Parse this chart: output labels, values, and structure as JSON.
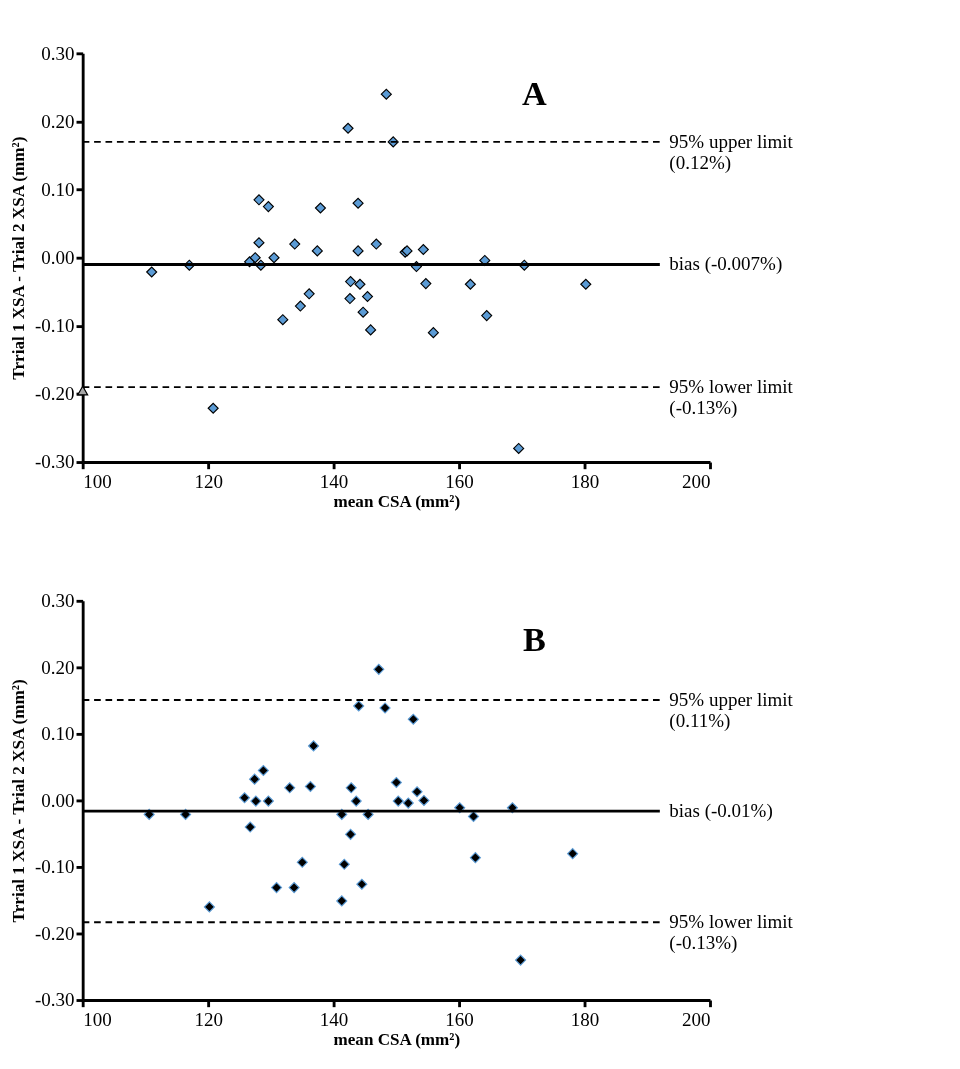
{
  "chart_data": [
    {
      "type": "scatter",
      "title": "A",
      "xlabel": "mean CSA (mm²)",
      "ylabel": "Trrial 1 XSA - Trial 2 XSA (mm²)",
      "xlim": [
        100,
        200
      ],
      "xticks": [
        100,
        120,
        140,
        160,
        180,
        200
      ],
      "ylim": [
        -0.3,
        0.3
      ],
      "yticks": [
        {
          "value": -0.3,
          "label": "-0.30"
        },
        {
          "value": -0.2,
          "label": "-0.20"
        },
        {
          "value": -0.1,
          "label": "-0.10"
        },
        {
          "value": 0,
          "label": "0.00"
        },
        {
          "value": 0.1,
          "label": "0.10"
        },
        {
          "value": 0.2,
          "label": "0.20"
        },
        {
          "value": 0.3,
          "label": "0.30"
        }
      ],
      "grid": false,
      "marker": "diamond",
      "series": [
        {
          "color": "#5b9bd5",
          "x": [
            111.0,
            117.0,
            128.1,
            129.6,
            128.1,
            126.6,
            127.5,
            128.4,
            130.5,
            131.9,
            134.7,
            136.1,
            133.8,
            137.4,
            137.9,
            142.3,
            143.9,
            143.9,
            142.7,
            144.2,
            142.6,
            144.7,
            148.4,
            149.5,
            146.8,
            151.4,
            151.7,
            154.3,
            153.2,
            154.7,
            164.1,
            170.4,
            180.2,
            161.8,
            164.4,
            155.9,
            145.4,
            145.9,
            120.8,
            169.5
          ],
          "values": [
            -0.021,
            -0.011,
            0.085,
            0.075,
            0.022,
            -0.006,
            0.0,
            -0.011,
            0.0,
            -0.091,
            -0.071,
            -0.053,
            0.02,
            0.01,
            0.073,
            0.19,
            0.08,
            0.01,
            -0.035,
            -0.039,
            -0.06,
            -0.08,
            0.24,
            0.17,
            0.02,
            0.008,
            0.01,
            0.012,
            -0.013,
            -0.038,
            -0.004,
            -0.011,
            -0.039,
            -0.039,
            -0.085,
            -0.11,
            -0.057,
            -0.106,
            -0.221,
            -0.28
          ]
        },
        {
          "color": "#a6a6a6",
          "marker": "triangle",
          "x": [
            100
          ],
          "values": [
            -0.195
          ]
        }
      ],
      "ref_lines": [
        {
          "axis": "y",
          "value": 0.17,
          "label": "95% upper limit\n (0.12%)",
          "line_style": "dashed"
        },
        {
          "axis": "y",
          "value": -0.01,
          "label": "bias (-0.007%)",
          "line_style": "solid"
        },
        {
          "axis": "y",
          "value": -0.19,
          "label": "95% lower limit\n (-0.13%)",
          "line_style": "dashed"
        }
      ]
    },
    {
      "type": "scatter",
      "title": "B",
      "xlabel": "mean CSA (mm²)",
      "ylabel": "Trrial 1 XSA - Trial 2 XSA (mm²)",
      "xlim": [
        100,
        200
      ],
      "xticks": [
        100,
        120,
        140,
        160,
        180,
        200
      ],
      "ylim": [
        -0.3,
        0.3
      ],
      "yticks": [
        {
          "value": -0.3,
          "label": "-0.30"
        },
        {
          "value": -0.2,
          "label": "-0.20"
        },
        {
          "value": -0.1,
          "label": "-0.10"
        },
        {
          "value": 0,
          "label": "0.00"
        },
        {
          "value": 0.1,
          "label": "0.10"
        },
        {
          "value": 0.2,
          "label": "0.20"
        },
        {
          "value": 0.3,
          "label": "0.30"
        }
      ],
      "grid": false,
      "marker": "diamond",
      "series": [
        {
          "color": "#000000",
          "x": [
            110.6,
            116.4,
            120.2,
            125.8,
            127.4,
            126.7,
            127.6,
            128.8,
            129.6,
            130.9,
            133.0,
            133.7,
            135.0,
            136.3,
            136.8,
            141.3,
            141.7,
            141.3,
            142.8,
            143.6,
            142.7,
            144.0,
            144.5,
            145.5,
            147.2,
            148.2,
            152.7,
            150.0,
            150.3,
            151.9,
            153.3,
            154.4,
            160.1,
            162.3,
            168.5,
            162.6,
            178.1,
            169.8
          ],
          "values": [
            -0.021,
            -0.021,
            -0.16,
            0.004,
            0.032,
            -0.04,
            -0.001,
            0.045,
            -0.001,
            -0.131,
            0.019,
            -0.131,
            -0.093,
            0.021,
            0.082,
            -0.021,
            -0.096,
            -0.151,
            0.019,
            -0.001,
            -0.051,
            0.142,
            -0.126,
            -0.021,
            0.197,
            0.139,
            0.122,
            0.027,
            -0.001,
            -0.004,
            0.013,
            0.0,
            -0.011,
            -0.024,
            -0.011,
            -0.086,
            -0.08,
            -0.24
          ]
        }
      ],
      "ref_lines": [
        {
          "axis": "y",
          "value": 0.151,
          "label": "95% upper limit\n (0.11%)",
          "line_style": "dashed"
        },
        {
          "axis": "y",
          "value": -0.016,
          "label": "bias (-0.01%)",
          "line_style": "solid"
        },
        {
          "axis": "y",
          "value": -0.183,
          "label": "95% lower limit\n (-0.13%)",
          "line_style": "dashed"
        }
      ]
    }
  ]
}
